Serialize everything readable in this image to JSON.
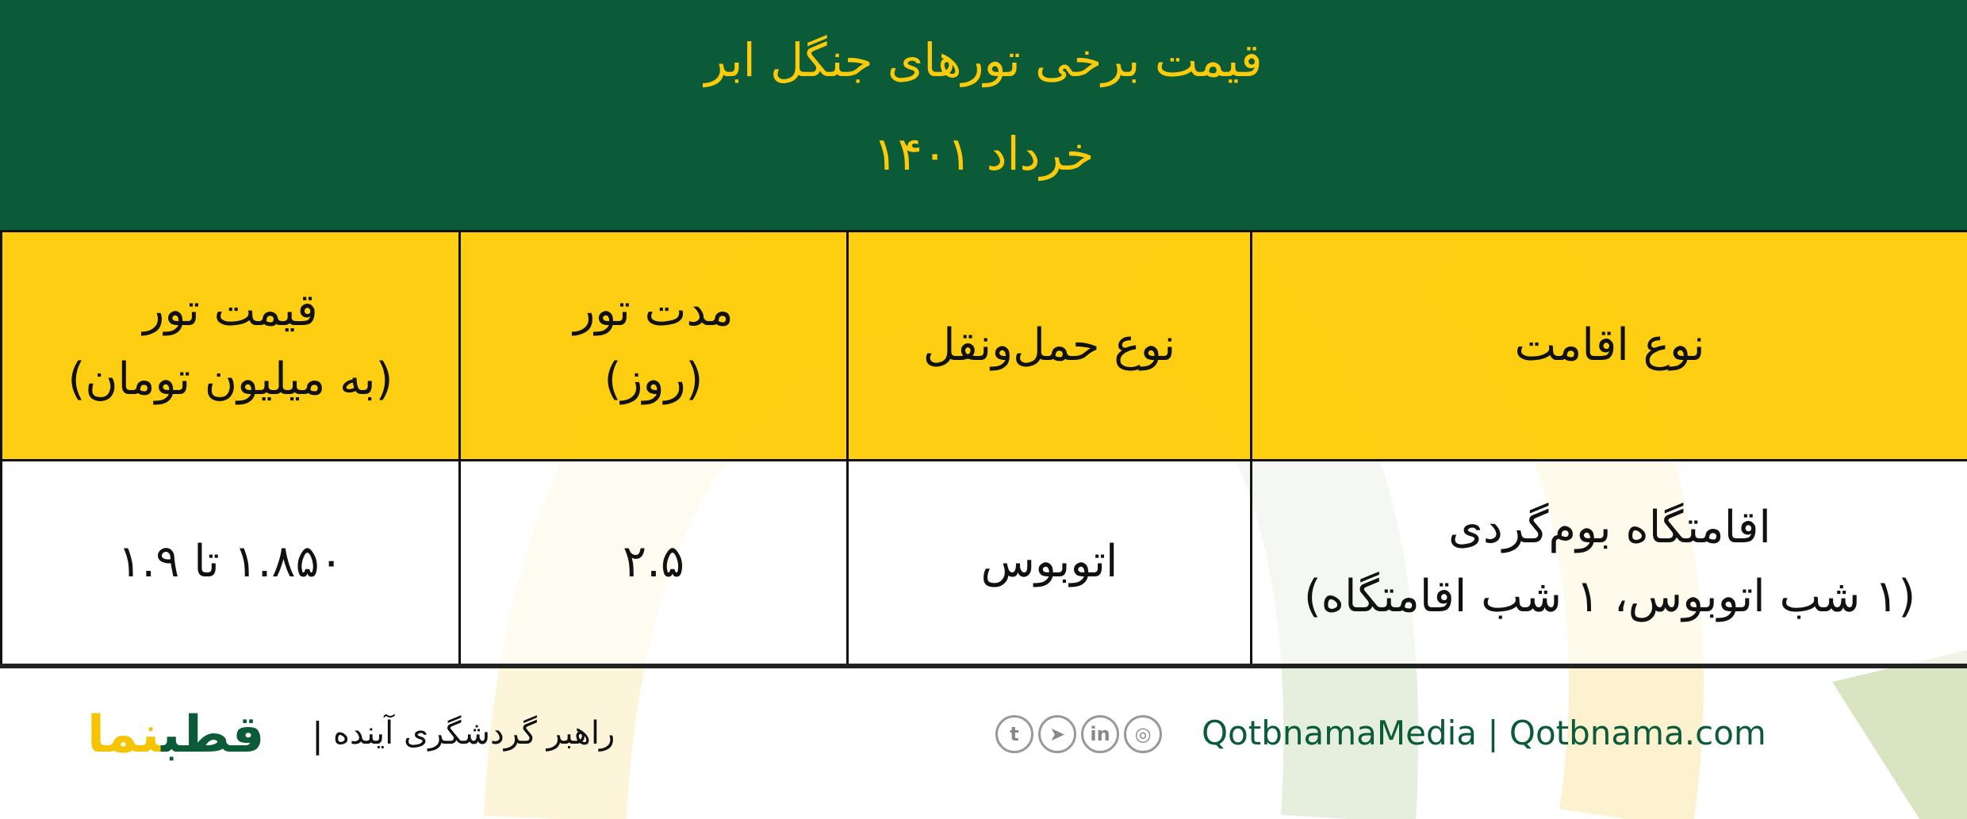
{
  "header": {
    "title": "قیمت برخی تورهای جنگل ابر",
    "date": "خرداد ۱۴۰۱"
  },
  "colors": {
    "green": "#0b5b38",
    "yellow": "#fecc0a"
  },
  "table": {
    "headers": [
      {
        "line1": "نوع اقامت",
        "line2": ""
      },
      {
        "line1": "نوع حمل‌ونقل",
        "line2": ""
      },
      {
        "line1": "مدت تور",
        "line2": "(روز)"
      },
      {
        "line1": "قیمت تور",
        "line2": "(به میلیون تومان)"
      }
    ],
    "rows": [
      {
        "accommodation": {
          "line1": "اقامتگاه بوم‌گردی",
          "line2": "(۱ شب اتوبوس، ۱ شب اقامتگاه)"
        },
        "transport": "اتوبوس",
        "duration": "۲.۵",
        "price": "۱.۸۵۰ تا ۱.۹"
      }
    ]
  },
  "footer": {
    "brand_logo": "قطب‌نما",
    "slogan": "راهبر گردشگری آینده",
    "separator": "|",
    "social_icons": [
      "twitter-icon",
      "telegram-icon",
      "linkedin-icon",
      "instagram-icon"
    ],
    "social_handle": "QotbnamaMedia | Qotbnama.com"
  }
}
